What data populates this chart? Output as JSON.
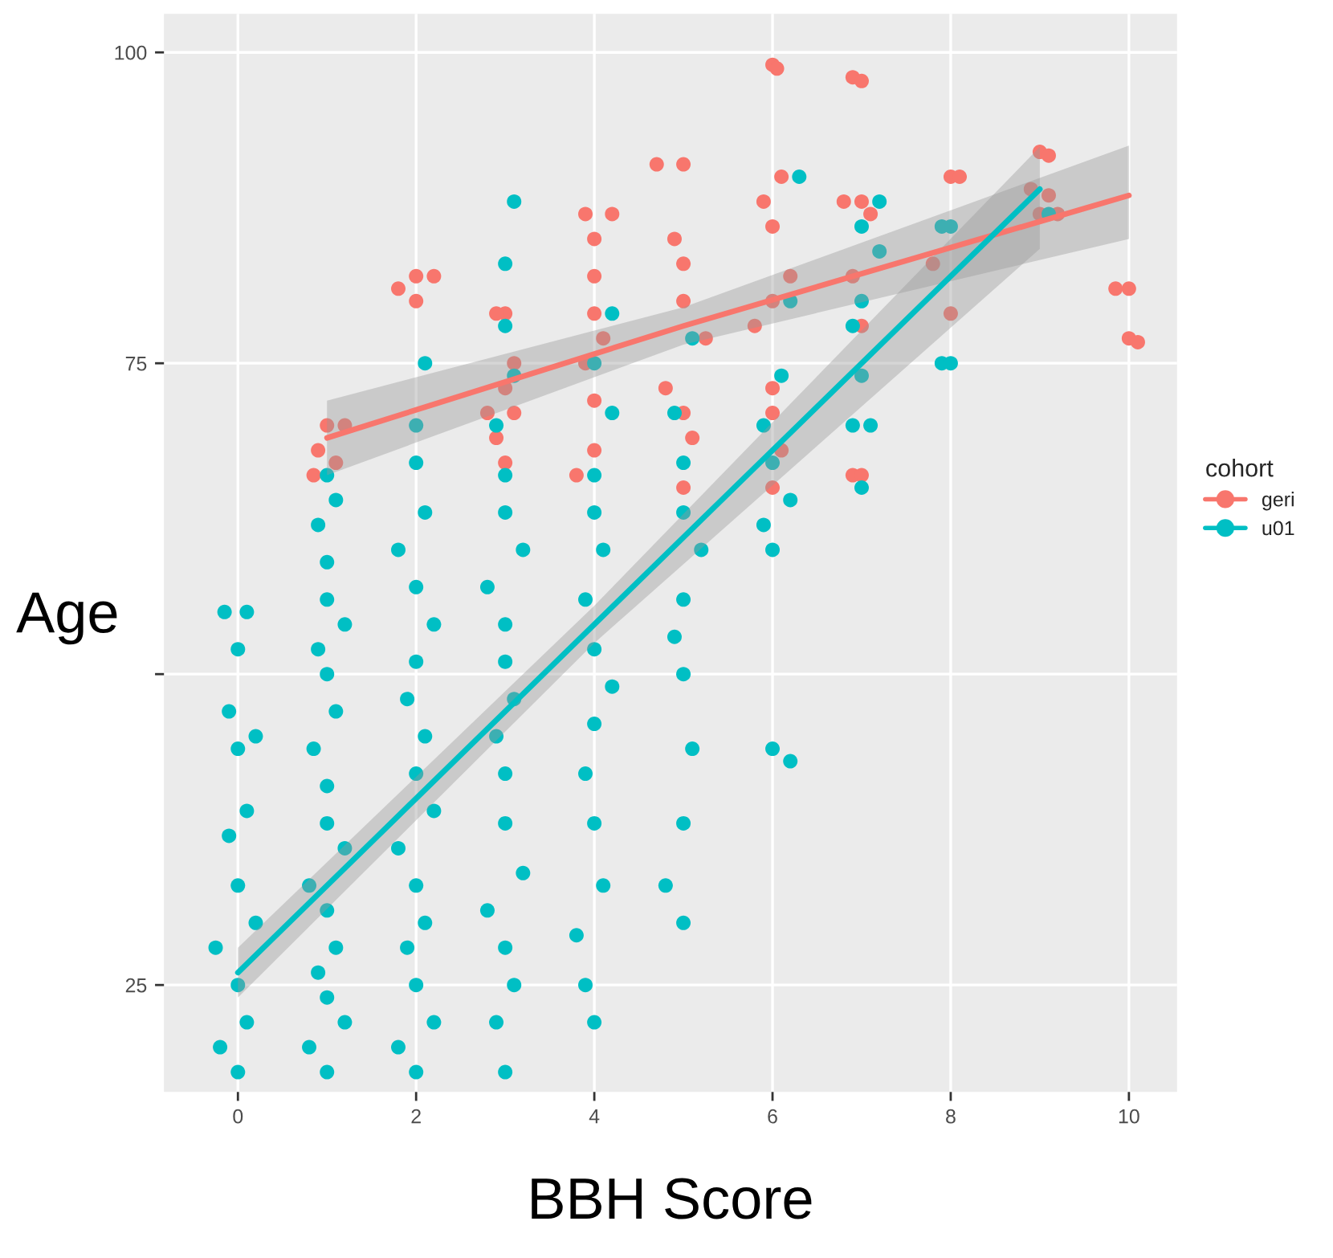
{
  "chart_data": {
    "type": "scatter",
    "xlabel": "BBH Score",
    "ylabel": "Age",
    "legend_title": "cohort",
    "legend": "right",
    "grid": true,
    "xlim": [
      -0.83,
      10.54
    ],
    "ylim": [
      16.4,
      103.1
    ],
    "xticks": [
      0,
      2,
      4,
      6,
      8,
      10
    ],
    "yticks": [
      25,
      {
        "value": 50,
        "label": null
      },
      75,
      100
    ],
    "series": [
      {
        "name": "geri",
        "marker": "circle",
        "color": "#f8766d",
        "x": [
          0.85,
          1.1,
          0.9,
          1,
          1.2,
          1.8,
          2,
          2.2,
          2,
          3,
          2.9,
          3.1,
          3,
          2.8,
          3.1,
          3,
          2.9,
          3.8,
          4,
          4,
          3.9,
          4.1,
          4,
          4,
          4,
          4.2,
          3.9,
          4.7,
          5,
          4.9,
          5,
          5,
          5.25,
          4.8,
          5,
          5.1,
          5,
          6,
          6.05,
          5.9,
          6.1,
          6,
          6.2,
          6,
          5.8,
          6,
          6,
          6.1,
          6,
          6.9,
          7,
          6.8,
          7,
          7.1,
          6.9,
          7,
          6.9,
          7,
          8,
          8.1,
          7.8,
          8,
          9,
          9.1,
          8.9,
          9.1,
          9,
          9.2,
          9.85,
          10,
          10,
          10.1
        ],
        "values": [
          66,
          67,
          68,
          70,
          70,
          81,
          82,
          82,
          80,
          67,
          69,
          71,
          73,
          71,
          75,
          79,
          79,
          66,
          68,
          72,
          75,
          77,
          79,
          82,
          85,
          87,
          87,
          91,
          91,
          85,
          83,
          80,
          77,
          73,
          71,
          69,
          65,
          99,
          98.7,
          88,
          90,
          86,
          82,
          80,
          78,
          73,
          71,
          68,
          65,
          98,
          97.7,
          88,
          88,
          87,
          82,
          78,
          66,
          66,
          90,
          90,
          83,
          79,
          92,
          91.7,
          89,
          88.5,
          87,
          87,
          81,
          81,
          77,
          76.7
        ]
      },
      {
        "name": "u01",
        "marker": "circle",
        "color": "#00bfc4",
        "x": [
          0,
          -0.2,
          0.1,
          0,
          -0.25,
          0.2,
          0,
          -0.1,
          0.1,
          0,
          -0.1,
          0.2,
          -0.15,
          0.1,
          0,
          1,
          0.8,
          1.2,
          1,
          0.9,
          1.1,
          1,
          0.8,
          1.2,
          1,
          1,
          0.85,
          1.1,
          1,
          0.9,
          1.2,
          1,
          1,
          0.9,
          1.1,
          1,
          2,
          1.8,
          2.2,
          2,
          1.9,
          2.1,
          2,
          1.8,
          2.2,
          2,
          2.1,
          1.9,
          2,
          2.2,
          2,
          1.8,
          2.1,
          2,
          2,
          2.1,
          3,
          2.9,
          3.1,
          3,
          2.8,
          3.2,
          3,
          3,
          2.9,
          3.1,
          3,
          3,
          2.8,
          3.2,
          3,
          3,
          2.9,
          3.1,
          3,
          3,
          3.1,
          4,
          3.9,
          3.8,
          4.1,
          4,
          3.9,
          4,
          4.2,
          4,
          3.9,
          4.1,
          4,
          4,
          4.2,
          4,
          4.2,
          5,
          4.8,
          5,
          5.1,
          5,
          4.9,
          5,
          5.2,
          5,
          5,
          4.9,
          5.1,
          6,
          6.2,
          6,
          5.9,
          6.2,
          6,
          5.9,
          6.1,
          6.2,
          6.3,
          7,
          6.9,
          7.1,
          7,
          6.9,
          7,
          7.2,
          7,
          7.2,
          7.9,
          8,
          7.9,
          8,
          9.1
        ],
        "values": [
          18,
          20,
          22,
          25,
          28,
          30,
          33,
          37,
          39,
          44,
          47,
          45,
          55,
          55,
          52,
          18,
          20,
          22,
          24,
          26,
          28,
          31,
          33,
          36,
          38,
          41,
          44,
          47,
          50,
          52,
          54,
          56,
          59,
          62,
          64,
          66,
          18,
          20,
          22,
          25,
          28,
          30,
          33,
          36,
          39,
          42,
          45,
          48,
          51,
          54,
          57,
          60,
          63,
          67,
          70,
          75,
          18,
          22,
          25,
          28,
          31,
          34,
          38,
          42,
          45,
          48,
          51,
          54,
          57,
          60,
          63,
          66,
          70,
          74,
          78,
          83,
          88,
          22,
          25,
          29,
          33,
          38,
          42,
          46,
          49,
          52,
          56,
          60,
          63,
          66,
          71,
          75,
          79,
          30,
          33,
          38,
          44,
          50,
          53,
          56,
          60,
          63,
          67,
          71,
          77,
          44,
          43,
          60,
          62,
          64,
          67,
          70,
          74,
          80,
          90,
          65,
          70,
          70,
          74,
          78,
          80,
          84,
          86,
          88,
          75,
          75,
          86,
          86,
          87
        ]
      },
      {
        "type": "line",
        "marker": "none",
        "color": "#f8766d",
        "x": [
          1,
          5,
          10
        ],
        "values": [
          69,
          78,
          88.5
        ],
        "lower": [
          66,
          76.5,
          85
        ],
        "upper": [
          72,
          79.5,
          92.5
        ]
      },
      {
        "type": "line",
        "marker": "none",
        "color": "#00bfc4",
        "x": [
          0,
          4,
          9
        ],
        "values": [
          26,
          54,
          89
        ],
        "lower": [
          24,
          52.5,
          84.2
        ],
        "upper": [
          28,
          55.5,
          92.4
        ]
      }
    ]
  }
}
